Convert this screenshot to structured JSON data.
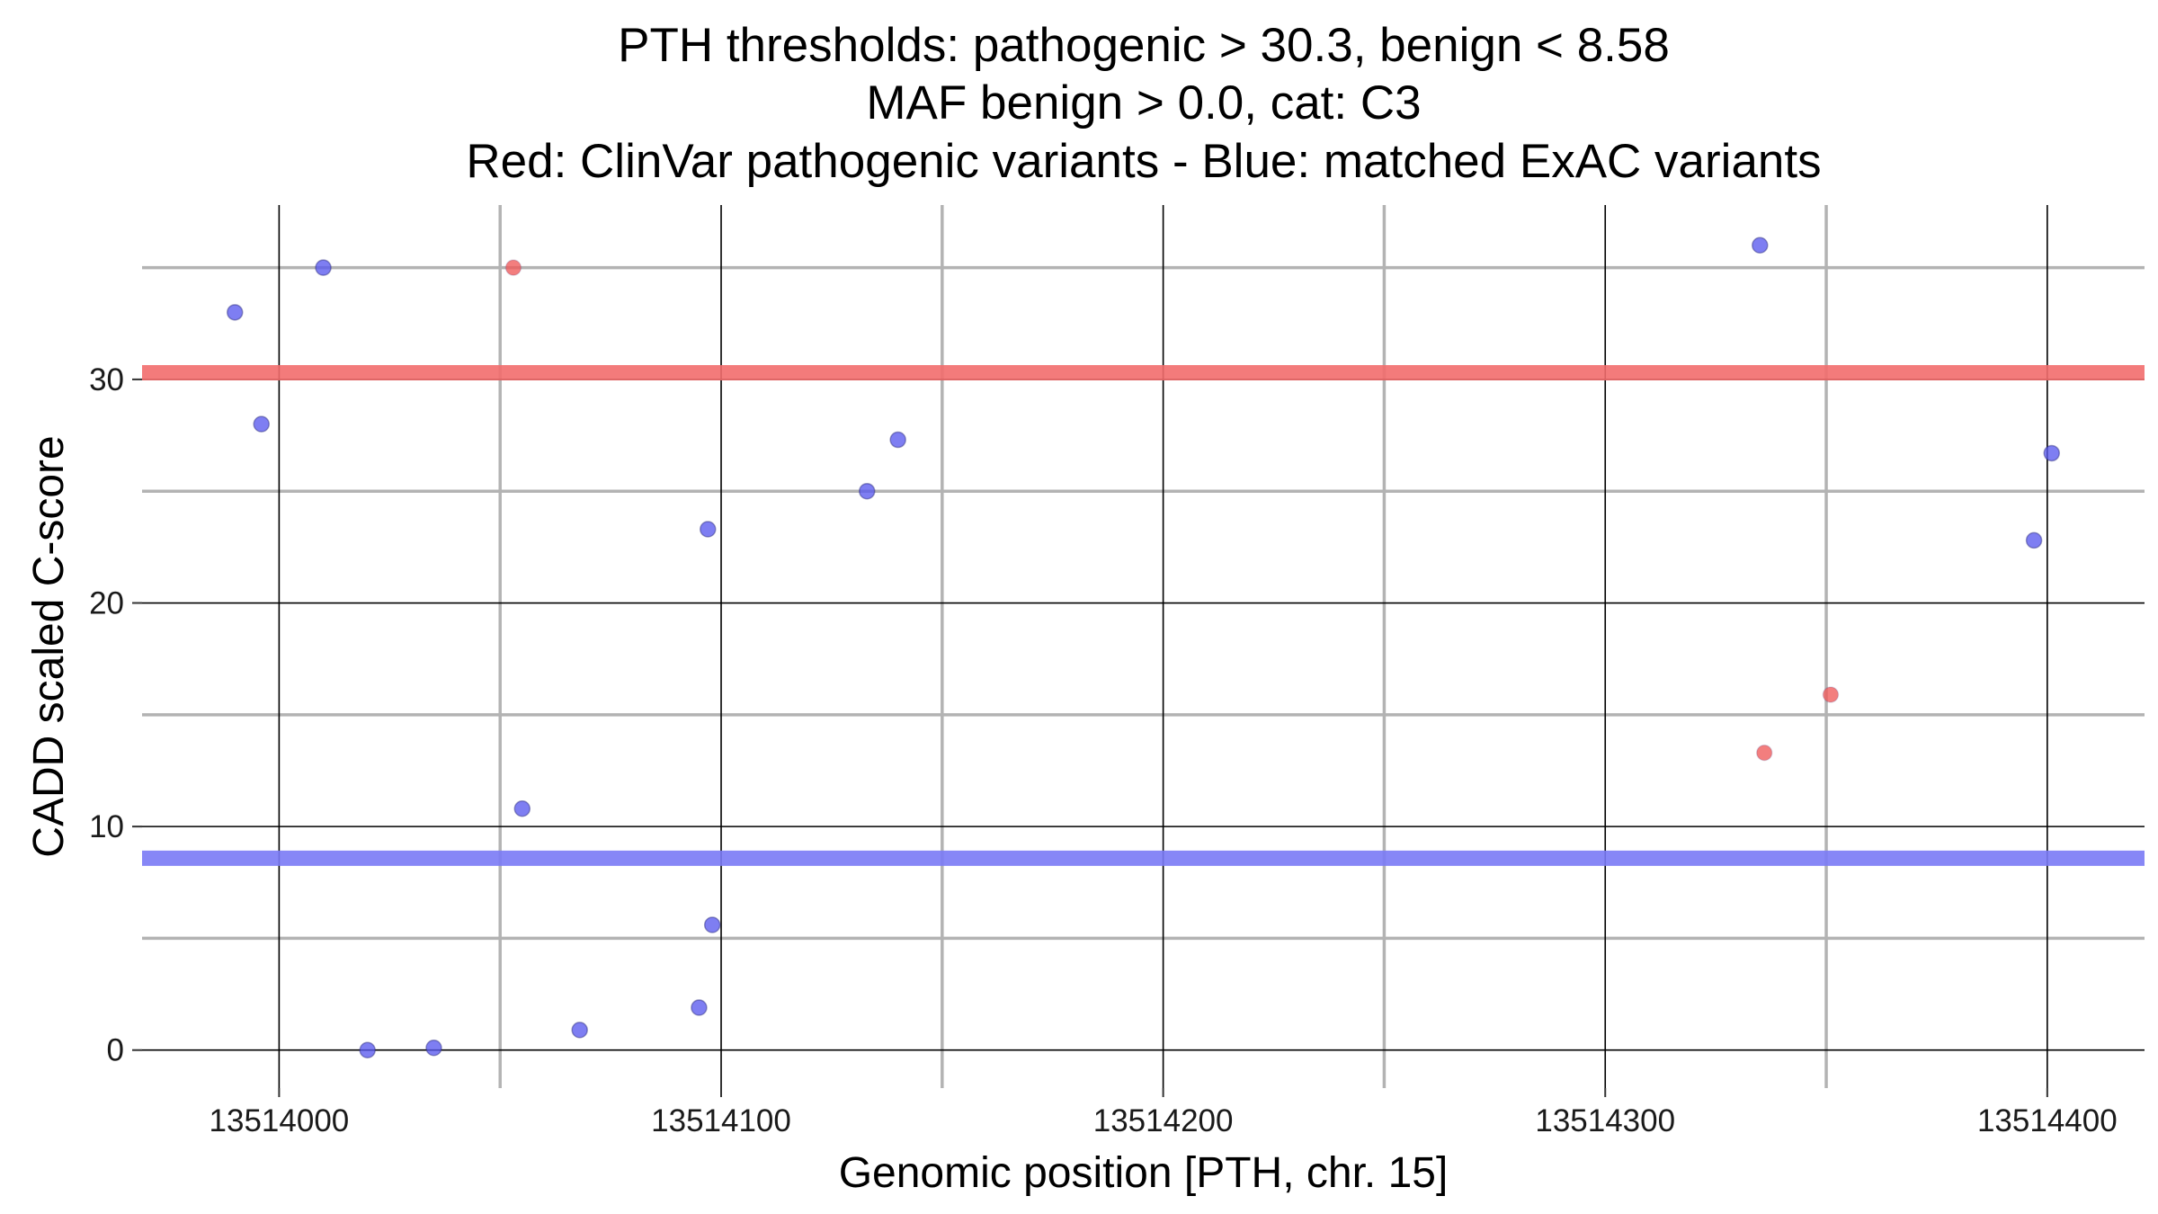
{
  "chart_data": {
    "type": "scatter",
    "title_lines": [
      "PTH thresholds: pathogenic > 30.3, benign < 8.58",
      "MAF benign > 0.0, cat: C3",
      "Red: ClinVar pathogenic variants - Blue: matched ExAC variants"
    ],
    "xlabel": "Genomic position [PTH, chr. 15]",
    "ylabel": "CADD scaled C-score",
    "xlim": [
      13513969,
      13514422
    ],
    "ylim": [
      -1.7,
      37.8
    ],
    "x_ticks": [
      13514000,
      13514100,
      13514200,
      13514300,
      13514400
    ],
    "x_tick_labels": [
      "13514000",
      "13514100",
      "13514200",
      "13514300",
      "13514400"
    ],
    "x_minor_grid": [
      13514050,
      13514150,
      13514250,
      13514350
    ],
    "y_ticks": [
      0,
      10,
      20,
      30
    ],
    "y_tick_labels": [
      "0",
      "10",
      "20",
      "30"
    ],
    "y_minor_grid": [
      5,
      15,
      25,
      35
    ],
    "grid": true,
    "thresholds": [
      {
        "value": 30.3,
        "color": "#f26d6d"
      },
      {
        "value": 8.58,
        "color": "#7a7af5"
      }
    ],
    "series": [
      {
        "color": "#f05a5a",
        "points": [
          {
            "x": 13514053,
            "y": 35.0
          },
          {
            "x": 13514336,
            "y": 13.3
          },
          {
            "x": 13514351,
            "y": 15.9
          }
        ]
      },
      {
        "color": "#5a5aee",
        "points": [
          {
            "x": 13513990,
            "y": 33.0
          },
          {
            "x": 13513996,
            "y": 28.0
          },
          {
            "x": 13514010,
            "y": 35.0
          },
          {
            "x": 13514020,
            "y": 0.0
          },
          {
            "x": 13514035,
            "y": 0.1
          },
          {
            "x": 13514055,
            "y": 10.8
          },
          {
            "x": 13514068,
            "y": 0.9
          },
          {
            "x": 13514095,
            "y": 1.9
          },
          {
            "x": 13514097,
            "y": 23.3
          },
          {
            "x": 13514098,
            "y": 5.6
          },
          {
            "x": 13514133,
            "y": 25.0
          },
          {
            "x": 13514140,
            "y": 27.3
          },
          {
            "x": 13514335,
            "y": 36.0
          },
          {
            "x": 13514397,
            "y": 22.8
          },
          {
            "x": 13514401,
            "y": 26.7
          }
        ]
      }
    ]
  }
}
